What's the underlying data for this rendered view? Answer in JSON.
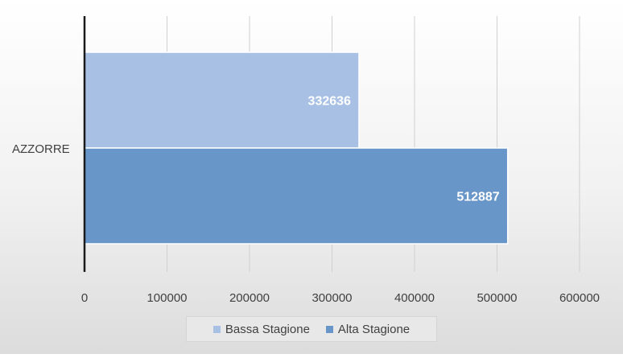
{
  "chart_data": {
    "type": "bar",
    "orientation": "horizontal",
    "categories": [
      "AZZORRE"
    ],
    "series": [
      {
        "name": "Bassa Stagione",
        "values": [
          332636
        ],
        "color": "#a7c0e3"
      },
      {
        "name": "Alta Stagione",
        "values": [
          512887
        ],
        "color": "#6896c8"
      }
    ],
    "xlim": [
      0,
      600000
    ],
    "x_ticks": [
      "0",
      "100000",
      "200000",
      "300000",
      "400000",
      "500000",
      "600000"
    ],
    "data_labels": [
      "332636",
      "512887"
    ],
    "grid": true,
    "legend_position": "bottom"
  }
}
